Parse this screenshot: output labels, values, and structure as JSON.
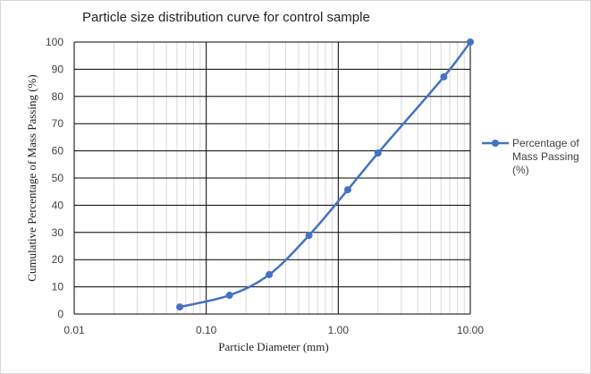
{
  "chart_data": {
    "type": "line",
    "title": "Particle size distribution curve for control sample",
    "x_label": "Particle Diameter (mm)",
    "y_label": "Cumulative  Percentage of Mass Passing (%)",
    "x": [
      0.063,
      0.15,
      0.3,
      0.6,
      1.18,
      2,
      6.3,
      10
    ],
    "series": [
      {
        "name": "Percentage of Mass Passing (%)",
        "color": "#4472c4",
        "values": [
          2.6,
          6.9,
          14.5,
          28.9,
          45.7,
          59.2,
          87.2,
          100
        ]
      }
    ],
    "x_scale": "log",
    "xlim": [
      0.01,
      10
    ],
    "xticks": [
      {
        "value": 0.01,
        "label": "0.01"
      },
      {
        "value": 0.1,
        "label": "0.10"
      },
      {
        "value": 1,
        "label": "1.00"
      },
      {
        "value": 10,
        "label": "10.00"
      }
    ],
    "ylim": [
      0,
      100
    ],
    "yticks": [
      0,
      10,
      20,
      30,
      40,
      50,
      60,
      70,
      80,
      90,
      100
    ],
    "grid": true,
    "minor_grid": true,
    "smooth": true,
    "legend": "right"
  }
}
